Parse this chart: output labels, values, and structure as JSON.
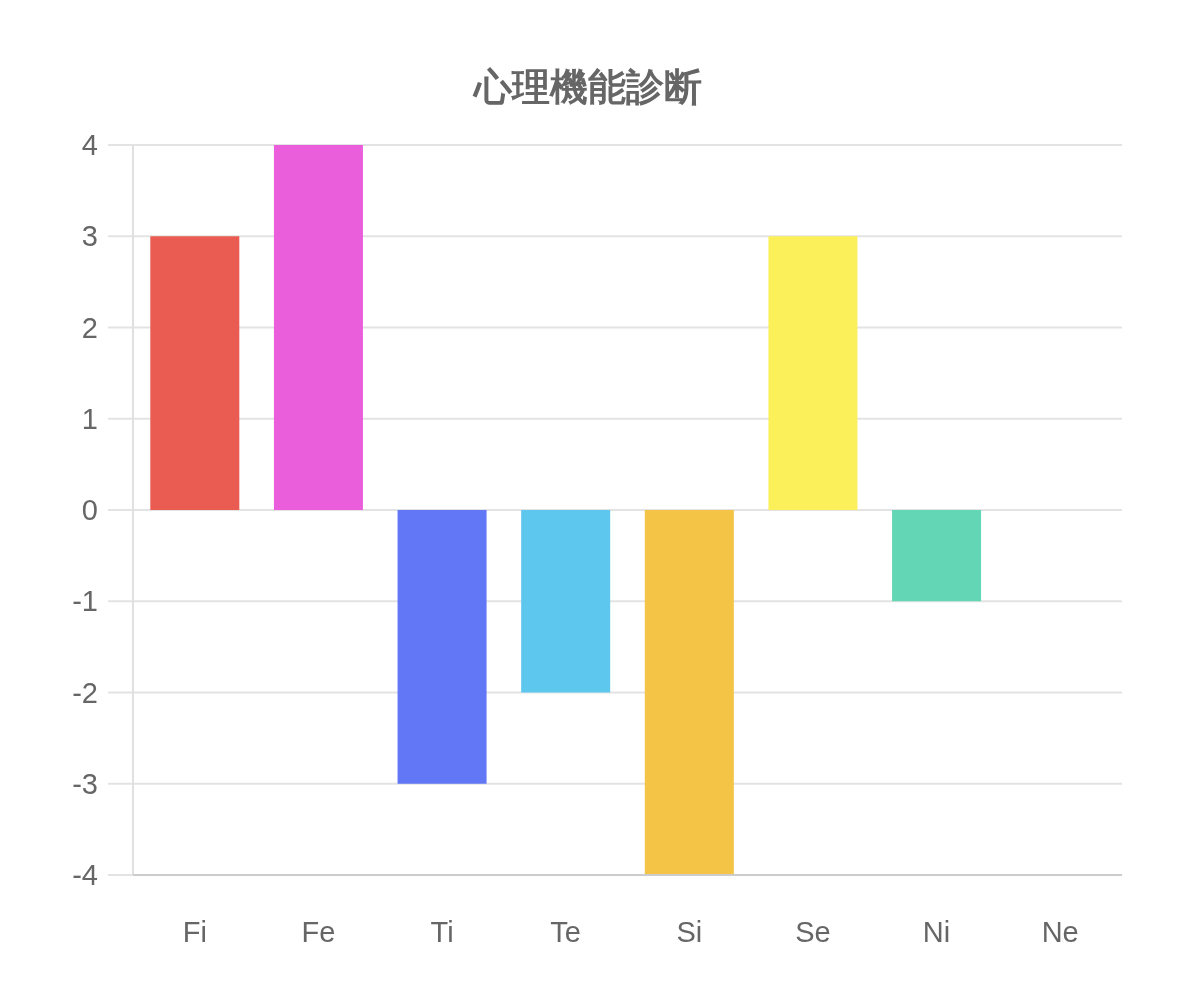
{
  "chart_data": {
    "type": "bar",
    "title": "心理機能診断",
    "categories": [
      "Fi",
      "Fe",
      "Ti",
      "Te",
      "Si",
      "Se",
      "Ni",
      "Ne"
    ],
    "values": [
      3,
      4,
      -3,
      -2,
      -4,
      3,
      -1,
      0
    ],
    "colors": [
      "#ea5c52",
      "#eb5edb",
      "#6177f5",
      "#5dc7ee",
      "#f4c447",
      "#fcf05a",
      "#63d6b5",
      null
    ],
    "ylim": [
      -4,
      4
    ],
    "yticks": [
      -4,
      -3,
      -2,
      -1,
      0,
      1,
      2,
      3,
      4
    ],
    "grid": "y"
  }
}
